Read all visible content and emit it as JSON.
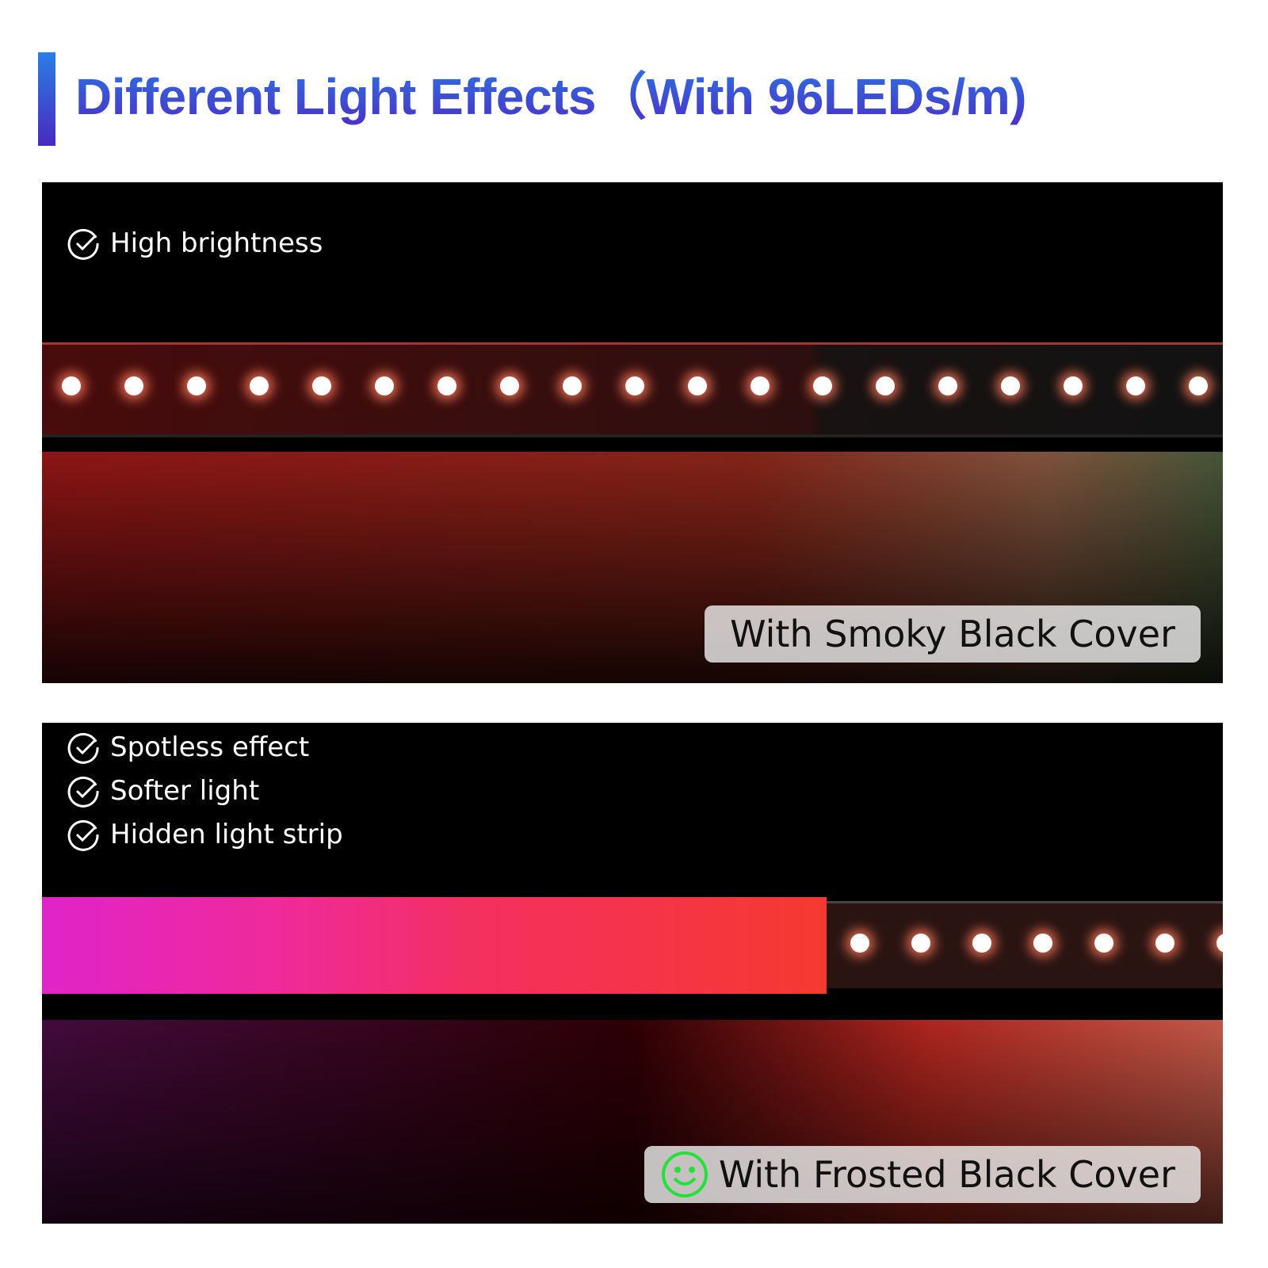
{
  "header": {
    "title": "Different Light Effects（With 96LEDs/m)",
    "accent_gradient": [
      "#2a7de6",
      "#4a2ac0"
    ]
  },
  "panels": [
    {
      "features": [
        "High brightness"
      ],
      "label": "With Smoky Black Cover",
      "check_icon": "check-circle-icon"
    },
    {
      "features": [
        "Spotless effect",
        "Softer light",
        "Hidden light strip"
      ],
      "label": "With Frosted Black Cover",
      "label_icon": "smiley-icon",
      "label_icon_color": "#22e23a"
    }
  ]
}
